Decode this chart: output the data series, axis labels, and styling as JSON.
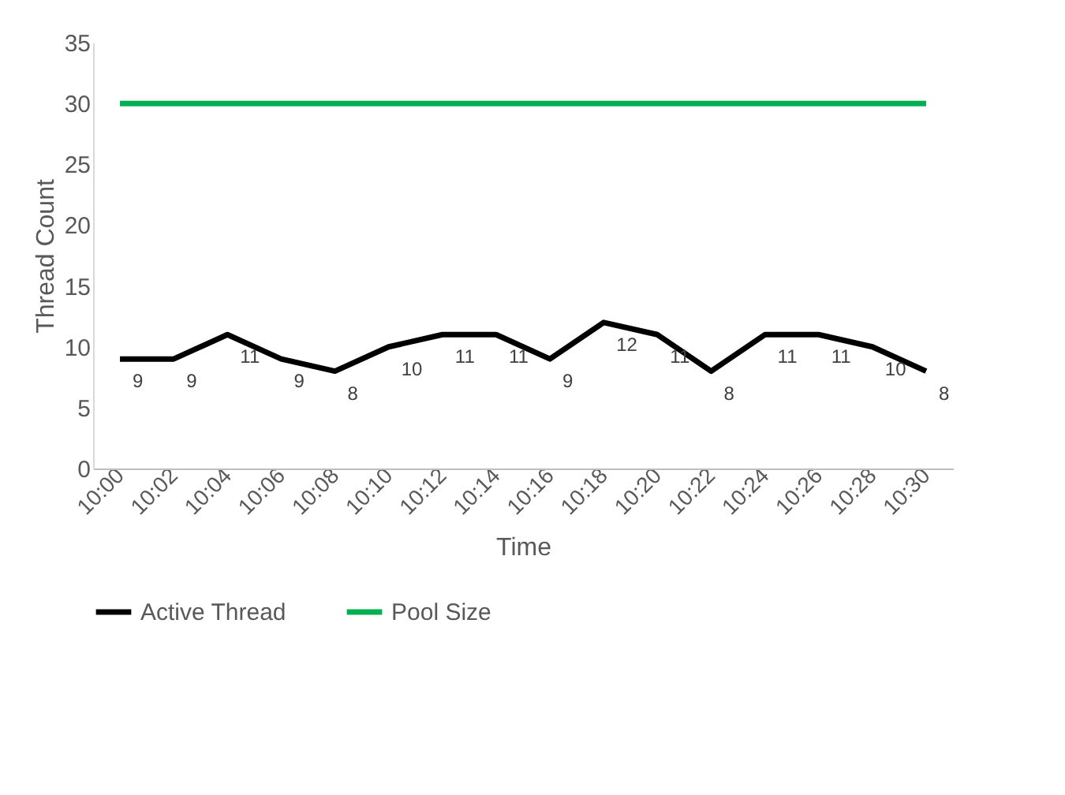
{
  "chart_data": {
    "type": "line",
    "xlabel": "Time",
    "ylabel": "Thread Count",
    "categories": [
      "10:00",
      "10:02",
      "10:04",
      "10:06",
      "10:08",
      "10:10",
      "10:12",
      "10:14",
      "10:16",
      "10:18",
      "10:20",
      "10:22",
      "10:24",
      "10:26",
      "10:28",
      "10:30"
    ],
    "series": [
      {
        "name": "Active Thread",
        "color": "#000000",
        "values": [
          9,
          9,
          11,
          9,
          8,
          10,
          11,
          11,
          9,
          12,
          11,
          8,
          11,
          11,
          10,
          8
        ],
        "value_labels": [
          "9",
          "9",
          "11",
          "9",
          "8",
          "10",
          "11",
          "11",
          "9",
          "12",
          "11",
          "8",
          "11",
          "11",
          "10",
          "8"
        ]
      },
      {
        "name": "Pool Size",
        "color": "#00b050",
        "values": [
          30,
          30,
          30,
          30,
          30,
          30,
          30,
          30,
          30,
          30,
          30,
          30,
          30,
          30,
          30,
          30
        ]
      }
    ],
    "ylim": [
      0,
      35
    ],
    "yticks": [
      0,
      5,
      10,
      15,
      20,
      25,
      30,
      35
    ],
    "grid": false,
    "legend": "bottom",
    "marker": "none",
    "line_style": "solid"
  }
}
